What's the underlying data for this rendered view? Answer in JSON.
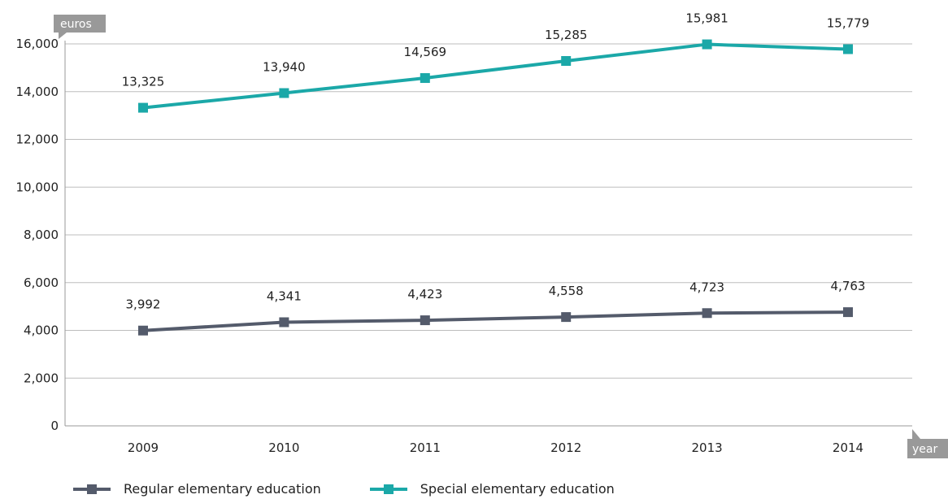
{
  "chart_data": {
    "type": "line",
    "y_unit_label": "euros",
    "x_unit_label": "year",
    "categories": [
      "2009",
      "2010",
      "2011",
      "2012",
      "2013",
      "2014"
    ],
    "ylim": [
      0,
      16000
    ],
    "yticks": [
      0,
      2000,
      4000,
      6000,
      8000,
      10000,
      12000,
      14000,
      16000
    ],
    "ytick_labels": [
      "0",
      "2,000",
      "4,000",
      "6,000",
      "8,000",
      "10,000",
      "12,000",
      "14,000",
      "16,000"
    ],
    "grid": true,
    "legend_position": "bottom-left",
    "series": [
      {
        "name": "Regular elementary education",
        "color": "#545b6b",
        "values": [
          3992,
          4341,
          4423,
          4558,
          4723,
          4763
        ],
        "labels": [
          "3,992",
          "4,341",
          "4,423",
          "4,558",
          "4,723",
          "4,763"
        ]
      },
      {
        "name": "Special elementary education",
        "color": "#1ba8a8",
        "values": [
          13325,
          13940,
          14569,
          15285,
          15981,
          15779
        ],
        "labels": [
          "13,325",
          "13,940",
          "14,569",
          "15,285",
          "15,981",
          "15,779"
        ]
      }
    ],
    "tag_color": "#999999",
    "grid_color": "#bdbdbd"
  }
}
